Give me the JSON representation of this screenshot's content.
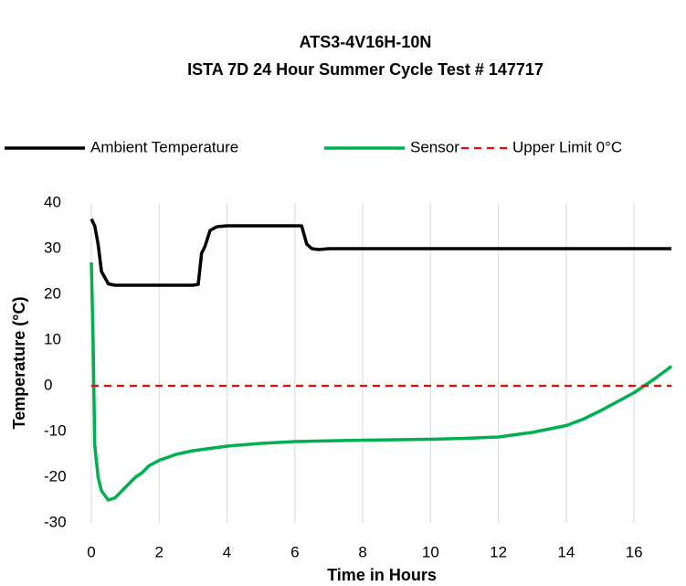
{
  "chart_data": {
    "type": "line",
    "title": "ATS3-4V16H-10N",
    "subtitle": "ISTA 7D 24 Hour Summer Cycle Test # 147717",
    "xlabel": "Time in Hours",
    "ylabel": "Temperature (°C)",
    "xlim": [
      0,
      17.1
    ],
    "xticks": [
      0,
      2,
      4,
      6,
      8,
      10,
      12,
      14,
      16
    ],
    "ylim": [
      -30,
      40
    ],
    "yticks": [
      -30,
      -20,
      -10,
      0,
      10,
      20,
      30,
      40
    ],
    "grid": "x",
    "legend": "top",
    "series": [
      {
        "name": "Ambient Temperature",
        "color": "#000000",
        "dash": false,
        "x": [
          0,
          0.1,
          0.2,
          0.3,
          0.5,
          0.7,
          1,
          2,
          3,
          3.15,
          3.25,
          3.35,
          3.5,
          3.7,
          4,
          5,
          6,
          6.2,
          6.35,
          6.5,
          6.7,
          7,
          8,
          10,
          12,
          14,
          16,
          17.1
        ],
        "values": [
          36.5,
          35,
          31,
          25,
          22.3,
          22,
          22,
          22,
          22,
          22.2,
          29,
          30.5,
          34,
          34.8,
          35,
          35,
          35,
          35,
          31,
          30,
          29.8,
          30,
          30,
          30,
          30,
          30,
          30,
          30
        ]
      },
      {
        "name": "Sensor",
        "color": "#00b050",
        "dash": false,
        "x": [
          0,
          0.05,
          0.1,
          0.2,
          0.3,
          0.4,
          0.5,
          0.7,
          0.9,
          1.1,
          1.3,
          1.5,
          1.7,
          2,
          2.5,
          3,
          3.5,
          4,
          5,
          6,
          8,
          10,
          11,
          12,
          13,
          14,
          14.5,
          15,
          15.5,
          16,
          16.3,
          16.6,
          17,
          17.1
        ],
        "values": [
          27,
          10,
          -13,
          -20,
          -23,
          -24,
          -25,
          -24.5,
          -23,
          -21.5,
          -20,
          -19,
          -17.5,
          -16.3,
          -15,
          -14.2,
          -13.7,
          -13.2,
          -12.6,
          -12.2,
          -11.9,
          -11.7,
          -11.5,
          -11.2,
          -10.2,
          -8.7,
          -7.3,
          -5.5,
          -3.5,
          -1.5,
          0,
          1.5,
          3.7,
          4.3
        ]
      },
      {
        "name": "Upper Limit 0°C",
        "color": "#ff0000",
        "dash": true,
        "x": [
          0,
          17.1
        ],
        "values": [
          0,
          0
        ]
      }
    ]
  }
}
